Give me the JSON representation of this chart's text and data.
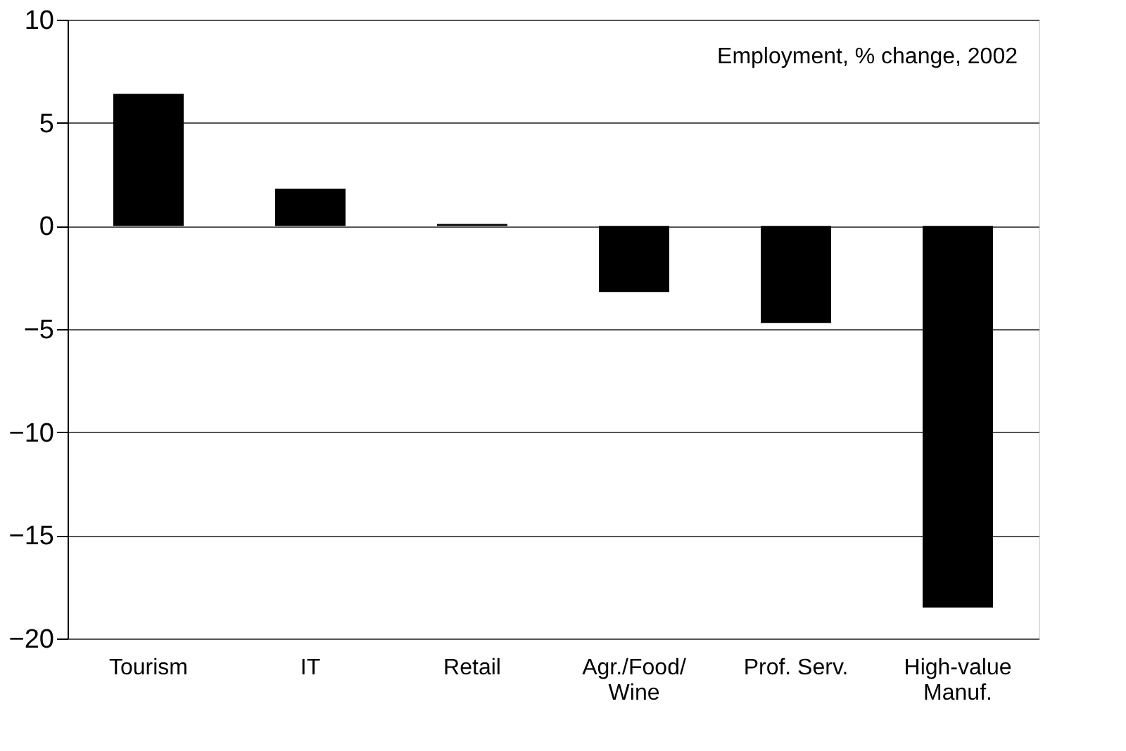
{
  "chart_data": {
    "type": "bar",
    "categories": [
      "Tourism",
      "IT",
      "Retail",
      "Agr./Food/\nWine",
      "Prof. Serv.",
      "High-value\nManuf."
    ],
    "values": [
      6.4,
      1.8,
      0.1,
      -3.2,
      -4.7,
      -18.5
    ],
    "color": "#000000",
    "ylim": [
      -20,
      10
    ],
    "yticks": [
      -20,
      -15,
      -10,
      -5,
      0,
      5,
      10
    ],
    "grid": "y",
    "annotations": [
      "Employment, % change, 2002"
    ]
  }
}
